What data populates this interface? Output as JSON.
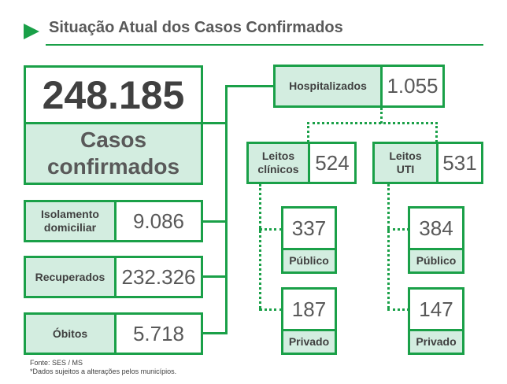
{
  "title": "Situação Atual dos Casos Confirmados",
  "total": {
    "value": "248.185",
    "label_line1": "Casos",
    "label_line2": "confirmados"
  },
  "isolamento": {
    "label_line1": "Isolamento",
    "label_line2": "domiciliar",
    "value": "9.086"
  },
  "recuperados": {
    "label": "Recuperados",
    "value": "232.326"
  },
  "obitos": {
    "label": "Óbitos",
    "value": "5.718"
  },
  "hospitalizados": {
    "label": "Hospitalizados",
    "value": "1.055"
  },
  "leitos_clinicos": {
    "label_line1": "Leitos",
    "label_line2": "clínicos",
    "value": "524",
    "publico": {
      "value": "337",
      "label": "Público"
    },
    "privado": {
      "value": "187",
      "label": "Privado"
    }
  },
  "leitos_uti": {
    "label_line1": "Leitos",
    "label_line2": "UTI",
    "value": "531",
    "publico": {
      "value": "384",
      "label": "Público"
    },
    "privado": {
      "value": "147",
      "label": "Privado"
    }
  },
  "footer": {
    "source": "Fonte: SES / MS",
    "note": "*Dados sujeitos a alterações pelos municípios."
  },
  "colors": {
    "accent": "#1aa048",
    "label_bg": "#d3ede0",
    "text": "#595959"
  }
}
